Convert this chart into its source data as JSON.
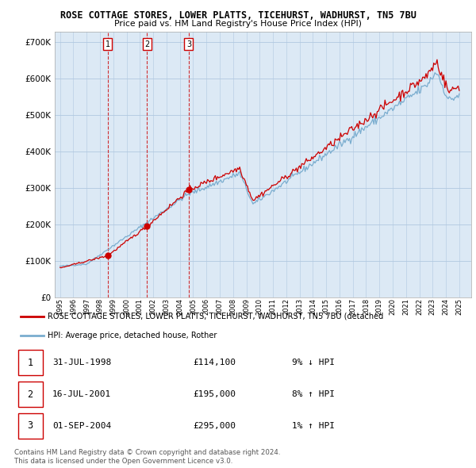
{
  "title": "ROSE COTTAGE STORES, LOWER PLATTS, TICEHURST, WADHURST, TN5 7BU",
  "subtitle": "Price paid vs. HM Land Registry's House Price Index (HPI)",
  "yticks": [
    0,
    100000,
    200000,
    300000,
    400000,
    500000,
    600000,
    700000
  ],
  "sale_dates": [
    1998.58,
    2001.54,
    2004.67
  ],
  "sale_prices": [
    114100,
    195000,
    295000
  ],
  "sale_labels": [
    "1",
    "2",
    "3"
  ],
  "legend_red": "ROSE COTTAGE STORES, LOWER PLATTS, TICEHURST, WADHURST, TN5 7BU (detached",
  "legend_blue": "HPI: Average price, detached house, Rother",
  "table_rows": [
    {
      "label": "1",
      "date": "31-JUL-1998",
      "price": "£114,100",
      "hpi": "9% ↓ HPI"
    },
    {
      "label": "2",
      "date": "16-JUL-2001",
      "price": "£195,000",
      "hpi": "8% ↑ HPI"
    },
    {
      "label": "3",
      "date": "01-SEP-2004",
      "price": "£295,000",
      "hpi": "1% ↑ HPI"
    }
  ],
  "footnote1": "Contains HM Land Registry data © Crown copyright and database right 2024.",
  "footnote2": "This data is licensed under the Open Government Licence v3.0.",
  "red_color": "#cc0000",
  "blue_color": "#7aadcf",
  "chart_bg": "#dce9f5",
  "grid_color": "#b0c8e0"
}
